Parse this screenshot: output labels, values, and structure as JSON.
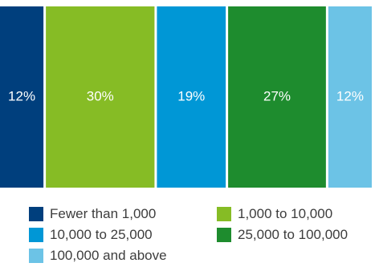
{
  "chart_data": {
    "type": "bar",
    "orientation": "stacked-horizontal-100",
    "segments": [
      {
        "name": "Fewer than 1,000",
        "value": 12,
        "label": "12%",
        "color": "#003F7D"
      },
      {
        "name": "1,000 to 10,000",
        "value": 30,
        "label": "30%",
        "color": "#86BC25"
      },
      {
        "name": "10,000 to 25,000",
        "value": 19,
        "label": "19%",
        "color": "#0097D6"
      },
      {
        "name": "25,000 to 100,000",
        "value": 27,
        "label": "27%",
        "color": "#1E8C2E"
      },
      {
        "name": "100,000 and above",
        "value": 12,
        "label": "12%",
        "color": "#6CC3E6"
      }
    ],
    "unit": "%",
    "total": 100,
    "legend_position": "bottom",
    "grid": false
  }
}
